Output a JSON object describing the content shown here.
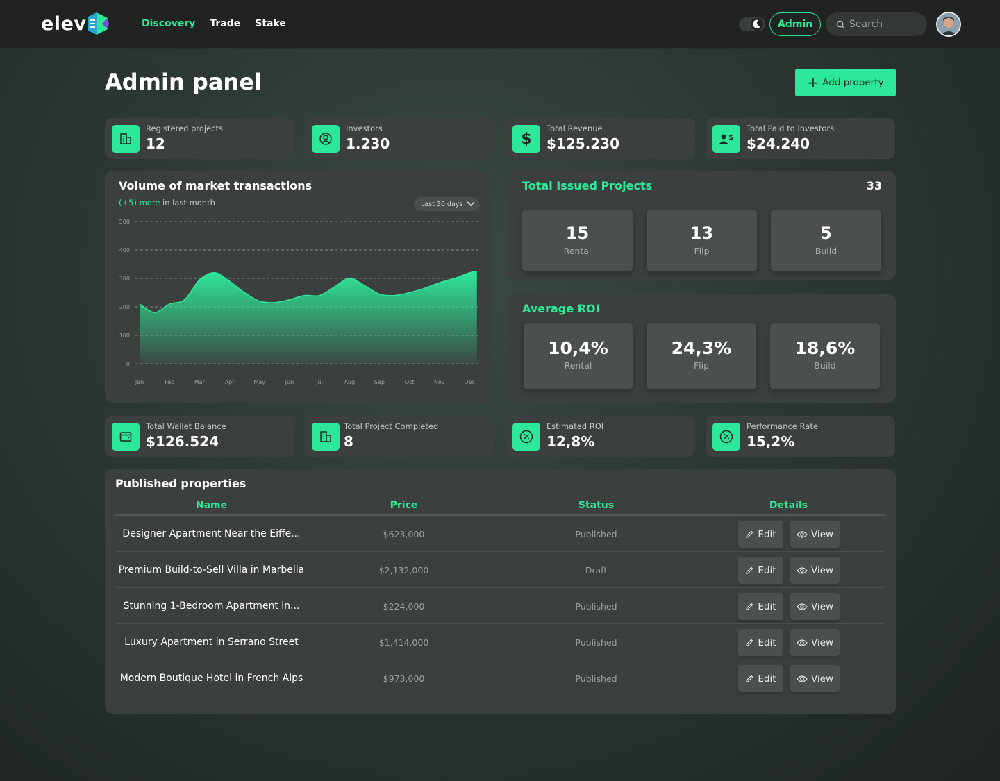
{
  "header": {
    "logo_text": "elev",
    "nav": [
      {
        "label": "Discovery",
        "active": true
      },
      {
        "label": "Trade",
        "active": false
      },
      {
        "label": "Stake",
        "active": false
      }
    ],
    "admin_label": "Admin",
    "search_placeholder": "Search",
    "accent": "#2ee89a"
  },
  "page": {
    "title": "Admin panel",
    "add_button_label": "Add property"
  },
  "stats_top": [
    {
      "icon": "building-icon",
      "label": "Registered projects",
      "value": "12"
    },
    {
      "icon": "user-circle-icon",
      "label": "Investors",
      "value": "1.230"
    },
    {
      "icon": "dollar-icon",
      "label": "Total Revenue",
      "value": "$125.230"
    },
    {
      "icon": "user-dollar-icon",
      "label": "Total Paid to Investors",
      "value": "$24.240"
    }
  ],
  "volume_chart": {
    "title": "Volume of market transactions",
    "subtitle_highlight": "(+5) more",
    "subtitle_rest": " in last month",
    "range_label": "Last 30 days"
  },
  "chart_data": {
    "type": "area",
    "title": "Volume of market transactions",
    "categories": [
      "Jan",
      "Feb",
      "Mar",
      "Apr",
      "May",
      "Jun",
      "Jul",
      "Aug",
      "Sep",
      "Oct",
      "Nov",
      "Dec"
    ],
    "x": [
      0,
      0.5,
      1,
      1.5,
      2,
      2.5,
      3,
      3.5,
      4,
      4.5,
      5,
      5.5,
      6,
      6.5,
      7,
      7.5,
      8,
      8.5,
      9,
      9.5,
      10,
      10.5,
      11,
      11.25
    ],
    "values": [
      210,
      180,
      210,
      225,
      295,
      320,
      290,
      250,
      220,
      215,
      225,
      240,
      240,
      270,
      300,
      275,
      245,
      240,
      250,
      265,
      285,
      300,
      320,
      325
    ],
    "yticks": [
      0,
      100,
      200,
      300,
      400,
      500
    ],
    "ylim": [
      0,
      500
    ],
    "grid": true,
    "color": "#2ee89a"
  },
  "issued_projects": {
    "title": "Total Issued Projects",
    "total": "33",
    "items": [
      {
        "value": "15",
        "label": "Rental"
      },
      {
        "value": "13",
        "label": "Flip"
      },
      {
        "value": "5",
        "label": "Build"
      }
    ]
  },
  "average_roi": {
    "title": "Average ROI",
    "items": [
      {
        "value": "10,4%",
        "label": "Rental"
      },
      {
        "value": "24,3%",
        "label": "Flip"
      },
      {
        "value": "18,6%",
        "label": "Build"
      }
    ]
  },
  "stats_bottom": [
    {
      "icon": "wallet-icon",
      "label": "Total Wallet Balance",
      "value": "$126.524"
    },
    {
      "icon": "building-icon",
      "label": "Total Project Completed",
      "value": "8"
    },
    {
      "icon": "percent-badge-icon",
      "label": "Estimated ROI",
      "value": "12,8%"
    },
    {
      "icon": "percent-badge-icon",
      "label": "Performance Rate",
      "value": "15,2%"
    }
  ],
  "properties": {
    "title": "Published properties",
    "columns": [
      "Name",
      "Price",
      "Status",
      "Details"
    ],
    "edit_label": "Edit",
    "view_label": "View",
    "rows": [
      {
        "name": "Designer Apartment Near the Eiffe...",
        "price": "$623,000",
        "status": "Published"
      },
      {
        "name": "Premium Build-to-Sell Villa in Marbella",
        "price": "$2,132,000",
        "status": "Draft"
      },
      {
        "name": "Stunning 1-Bedroom Apartment in...",
        "price": "$224,000",
        "status": "Published"
      },
      {
        "name": "Luxury Apartment in Serrano Street",
        "price": "$1,414,000",
        "status": "Published"
      },
      {
        "name": "Modern Boutique Hotel in French Alps",
        "price": "$973,000",
        "status": "Published"
      }
    ]
  }
}
